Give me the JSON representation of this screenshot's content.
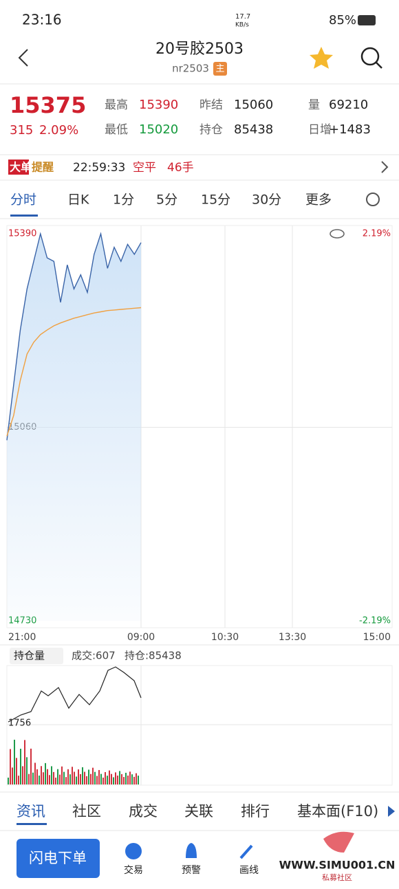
{
  "status": {
    "time": "23:16",
    "speed": "17.7",
    "speed_unit": "KB/s",
    "battery": "85%"
  },
  "header": {
    "title": "20号胶2503",
    "code": "nr2503",
    "badge": "主"
  },
  "quote": {
    "price": "15375",
    "change": "315",
    "pct": "2.09%",
    "fields": [
      {
        "label": "最高",
        "value": "15390"
      },
      {
        "label": "昨结",
        "value": "15060"
      },
      {
        "label": "量",
        "value": "69210"
      },
      {
        "label": "最低",
        "value": "15020"
      },
      {
        "label": "持仓",
        "value": "85438"
      },
      {
        "label": "日增",
        "value": "+1483"
      }
    ]
  },
  "alert": {
    "badge1": "大单",
    "badge2": "提醒",
    "time": "22:59:33",
    "action": "空平",
    "qty": "46手"
  },
  "tabs": [
    "分时",
    "日K",
    "1分",
    "5分",
    "15分",
    "30分",
    "更多"
  ],
  "chart": {
    "ylim": [
      14730,
      15390
    ],
    "yticks": [
      15390,
      15060,
      14730
    ],
    "pct_labels": [
      "2.19%",
      "-2.19%"
    ],
    "times": [
      "21:00",
      "09:00",
      "10:30",
      "13:30",
      "15:00"
    ],
    "price_series": [
      15038,
      15132,
      15226,
      15296,
      15343,
      15390,
      15349,
      15343,
      15273,
      15337,
      15296,
      15320,
      15290,
      15355,
      15390,
      15331,
      15367,
      15343,
      15372,
      15355,
      15375
    ],
    "avg_series": [
      15045,
      15080,
      15140,
      15185,
      15205,
      15218,
      15226,
      15233,
      15238,
      15242,
      15246,
      15249,
      15252,
      15255,
      15257,
      15259,
      15260,
      15261,
      15262,
      15263,
      15264
    ]
  },
  "sub": {
    "selector": "持仓量",
    "volume": "成交:607",
    "oi": "持仓:85438",
    "axis_label": "1756"
  },
  "bottom_tabs": [
    "资讯",
    "社区",
    "成交",
    "关联",
    "排行",
    "基本面(F10)"
  ],
  "actions": {
    "button": "闪电下单",
    "items": [
      "交易",
      "预警",
      "画线"
    ],
    "watermark": "WWW.SIMU001.CN",
    "watermark_sub": "私募社区"
  }
}
